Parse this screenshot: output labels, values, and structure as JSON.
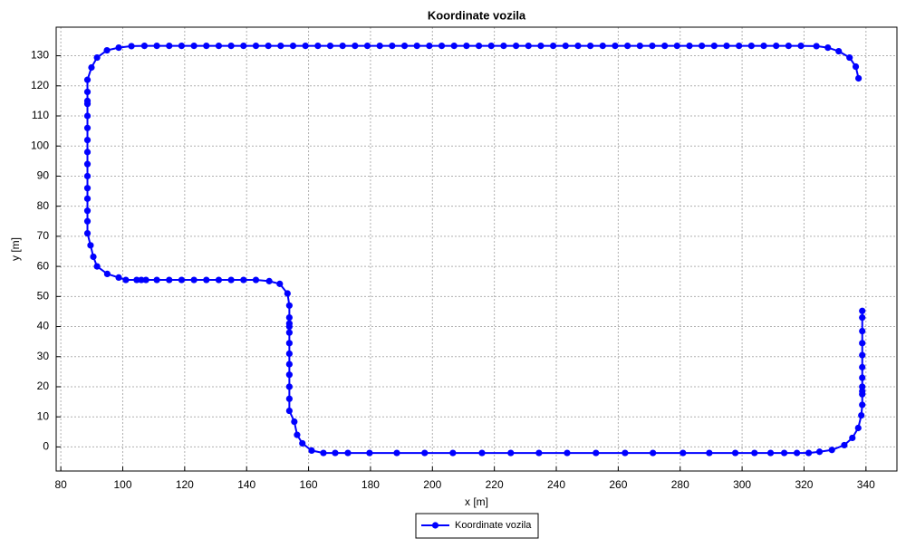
{
  "chart_data": {
    "type": "line",
    "title": "Koordinate vozila",
    "x_label": "x [m]",
    "y_label": "y [m]",
    "xlim": [
      78.5,
      350
    ],
    "ylim": [
      -8,
      139.5
    ],
    "xticks": [
      80,
      100,
      120,
      140,
      160,
      180,
      200,
      220,
      240,
      260,
      280,
      300,
      320,
      340
    ],
    "yticks": [
      0,
      10,
      20,
      30,
      40,
      50,
      60,
      70,
      80,
      90,
      100,
      110,
      120,
      130
    ],
    "grid": true,
    "legend": "bottom",
    "x": [
      338.8,
      338.8,
      338.8,
      338.8,
      338.8,
      338.8,
      338.8,
      338.8,
      338.8,
      338.8,
      338.8,
      338.5,
      337.5,
      335.6,
      333,
      329,
      325,
      321.5,
      317.7,
      313.6,
      309.2,
      304,
      297.8,
      289.4,
      280.9,
      271.2,
      262.2,
      252.8,
      243.5,
      234.4,
      225.3,
      216,
      206.6,
      197.5,
      188.5,
      179.7,
      172.7,
      168.6,
      164.8,
      161,
      158,
      156.3,
      155.4,
      153.8,
      153.8,
      153.8,
      153.8,
      153.8,
      153.8,
      153.8,
      153.8,
      153.8,
      153.8,
      153.8,
      153.8,
      153.2,
      150.7,
      147.3,
      143,
      139,
      135,
      131,
      127,
      123,
      119,
      115,
      111,
      107.5,
      106,
      104.5,
      101,
      98.7,
      95,
      91.7,
      90.5,
      89.6,
      88.6,
      88.6,
      88.6,
      88.6,
      88.6,
      88.6,
      88.6,
      88.6,
      88.6,
      88.6,
      88.6,
      88.6,
      88.6,
      88.6,
      88.6,
      89.9,
      91.7,
      94.9,
      98.7,
      102.8,
      107,
      111,
      115,
      119,
      123,
      127,
      131,
      135,
      139,
      143,
      147,
      151,
      155,
      159,
      163,
      167,
      171,
      175,
      179,
      183,
      187,
      191,
      195,
      199,
      203,
      207,
      211,
      215,
      219,
      223,
      227,
      231,
      235,
      239,
      243,
      247,
      251,
      255,
      259,
      263,
      267,
      271,
      275,
      279,
      283,
      287,
      291,
      295,
      299,
      303,
      307,
      311,
      315,
      319,
      324,
      327.7,
      331.2,
      334.7,
      336.7,
      337.6
    ],
    "series": [
      {
        "name": "Koordinate vozila",
        "color": "#0000ff",
        "values": [
          45.2,
          43,
          38.5,
          34.5,
          30.5,
          26.5,
          23,
          20,
          18.5,
          17.5,
          14,
          10.5,
          6.3,
          3,
          0.6,
          -1,
          -1.6,
          -2,
          -2,
          -2,
          -2,
          -2,
          -2,
          -2,
          -2,
          -2,
          -2,
          -2,
          -2,
          -2,
          -2,
          -2,
          -2,
          -2,
          -2,
          -2,
          -2,
          -2,
          -2,
          -1.2,
          1.2,
          4,
          8.4,
          12,
          16,
          20,
          24,
          27.5,
          31,
          34.5,
          38,
          40,
          41,
          43,
          47,
          51,
          54.2,
          55.1,
          55.5,
          55.5,
          55.5,
          55.5,
          55.5,
          55.5,
          55.5,
          55.5,
          55.5,
          55.5,
          55.5,
          55.5,
          55.5,
          56.3,
          57.5,
          60,
          63.2,
          67,
          71,
          75,
          78.5,
          82.5,
          86,
          90,
          94,
          98,
          102,
          106,
          110,
          114,
          115,
          118,
          122,
          126.1,
          129.4,
          131.8,
          132.7,
          133.2,
          133.3,
          133.3,
          133.3,
          133.3,
          133.3,
          133.3,
          133.3,
          133.3,
          133.3,
          133.3,
          133.3,
          133.3,
          133.3,
          133.3,
          133.3,
          133.3,
          133.3,
          133.3,
          133.3,
          133.3,
          133.3,
          133.3,
          133.3,
          133.3,
          133.3,
          133.3,
          133.3,
          133.3,
          133.3,
          133.3,
          133.3,
          133.3,
          133.3,
          133.3,
          133.3,
          133.3,
          133.3,
          133.3,
          133.3,
          133.3,
          133.3,
          133.3,
          133.3,
          133.3,
          133.3,
          133.3,
          133.3,
          133.3,
          133.3,
          133.3,
          133.3,
          133.3,
          133.3,
          133.3,
          133.2,
          132.7,
          131.5,
          129.4,
          126.4,
          122.5
        ]
      }
    ]
  }
}
